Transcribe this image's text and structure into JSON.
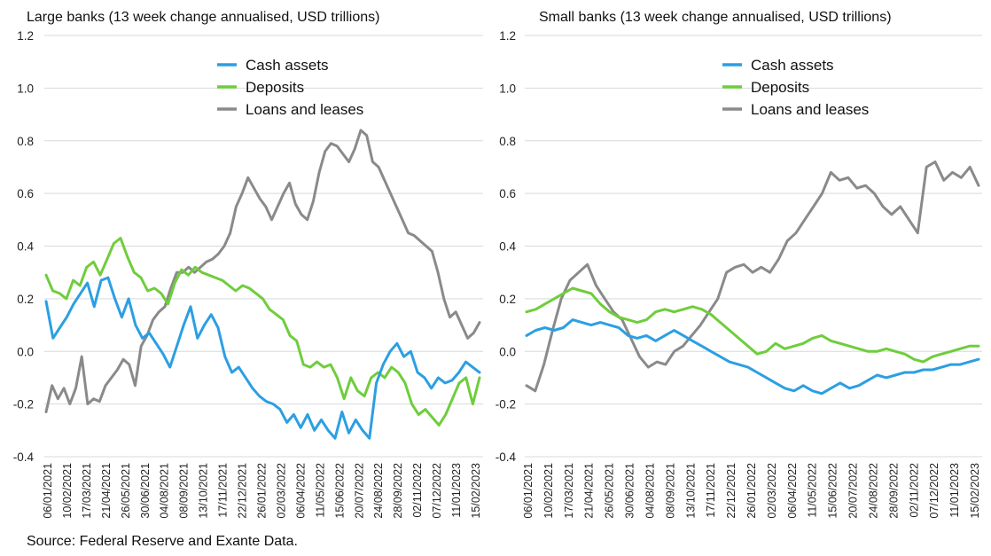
{
  "source": "Source: Federal Reserve and Exante Data.",
  "colors": {
    "cash": "#2b9fe3",
    "deposits": "#6fcd3c",
    "loans": "#8a8a8a",
    "grid": "#d9d9d9"
  },
  "chart_data": [
    {
      "type": "line",
      "title": "Large banks (13 week change annualised, USD trillions)",
      "ylim": [
        -0.4,
        1.2
      ],
      "yticks": [
        "1.2",
        "1.0",
        "0.8",
        "0.6",
        "0.4",
        "0.2",
        "0.0",
        "-0.2",
        "-0.4"
      ],
      "xticks": [
        "06/01/2021",
        "10/02/2021",
        "17/03/2021",
        "21/04/2021",
        "26/05/2021",
        "30/06/2021",
        "04/08/2021",
        "08/09/2021",
        "13/10/2021",
        "17/11/2021",
        "22/12/2021",
        "26/01/2022",
        "02/03/2022",
        "06/04/2022",
        "11/05/2022",
        "15/06/2022",
        "20/07/2022",
        "24/08/2022",
        "28/09/2022",
        "02/11/2022",
        "07/12/2022",
        "11/01/2023",
        "15/02/2023"
      ],
      "legend": "top-center",
      "grid": "horizontal",
      "series": [
        {
          "name": "Cash assets",
          "color_key": "cash",
          "values": [
            0.19,
            0.05,
            0.09,
            0.13,
            0.18,
            0.22,
            0.26,
            0.17,
            0.27,
            0.28,
            0.2,
            0.13,
            0.2,
            0.1,
            0.05,
            0.07,
            0.03,
            -0.01,
            -0.06,
            0.02,
            0.1,
            0.17,
            0.05,
            0.1,
            0.14,
            0.09,
            -0.02,
            -0.08,
            -0.06,
            -0.1,
            -0.14,
            -0.17,
            -0.19,
            -0.2,
            -0.22,
            -0.27,
            -0.24,
            -0.29,
            -0.24,
            -0.3,
            -0.26,
            -0.3,
            -0.33,
            -0.23,
            -0.31,
            -0.26,
            -0.3,
            -0.33,
            -0.12,
            -0.05,
            0.0,
            0.03,
            -0.02,
            0.0,
            -0.08,
            -0.1,
            -0.14,
            -0.1,
            -0.12,
            -0.11,
            -0.08,
            -0.04,
            -0.06,
            -0.08
          ]
        },
        {
          "name": "Deposits",
          "color_key": "deposits",
          "values": [
            0.29,
            0.23,
            0.22,
            0.2,
            0.27,
            0.25,
            0.32,
            0.34,
            0.29,
            0.35,
            0.41,
            0.43,
            0.36,
            0.3,
            0.28,
            0.23,
            0.24,
            0.22,
            0.18,
            0.26,
            0.31,
            0.29,
            0.32,
            0.3,
            0.29,
            0.28,
            0.27,
            0.25,
            0.23,
            0.25,
            0.24,
            0.22,
            0.2,
            0.16,
            0.14,
            0.12,
            0.06,
            0.04,
            -0.05,
            -0.06,
            -0.04,
            -0.06,
            -0.05,
            -0.1,
            -0.18,
            -0.1,
            -0.15,
            -0.17,
            -0.1,
            -0.08,
            -0.1,
            -0.06,
            -0.08,
            -0.12,
            -0.2,
            -0.24,
            -0.22,
            -0.25,
            -0.28,
            -0.24,
            -0.18,
            -0.12,
            -0.1,
            -0.2,
            -0.1
          ]
        },
        {
          "name": "Loans and leases",
          "color_key": "loans",
          "values": [
            -0.23,
            -0.13,
            -0.18,
            -0.14,
            -0.2,
            -0.14,
            -0.02,
            -0.2,
            -0.18,
            -0.19,
            -0.13,
            -0.1,
            -0.07,
            -0.03,
            -0.05,
            -0.13,
            0.02,
            0.06,
            0.12,
            0.15,
            0.17,
            0.24,
            0.3,
            0.3,
            0.32,
            0.3,
            0.32,
            0.34,
            0.35,
            0.37,
            0.4,
            0.45,
            0.55,
            0.6,
            0.66,
            0.62,
            0.58,
            0.55,
            0.5,
            0.55,
            0.6,
            0.64,
            0.56,
            0.52,
            0.5,
            0.57,
            0.68,
            0.76,
            0.79,
            0.78,
            0.75,
            0.72,
            0.77,
            0.84,
            0.82,
            0.72,
            0.7,
            0.65,
            0.6,
            0.55,
            0.5,
            0.45,
            0.44,
            0.42,
            0.4,
            0.38,
            0.3,
            0.2,
            0.13,
            0.15,
            0.1,
            0.05,
            0.07,
            0.11
          ]
        }
      ]
    },
    {
      "type": "line",
      "title": "Small banks (13 week change annualised, USD trillions)",
      "ylim": [
        -0.4,
        1.2
      ],
      "yticks": [
        "1.2",
        "1.0",
        "0.8",
        "0.6",
        "0.4",
        "0.2",
        "0.0",
        "-0.2",
        "-0.4"
      ],
      "xticks": [
        "06/01/2021",
        "10/02/2021",
        "17/03/2021",
        "21/04/2021",
        "26/05/2021",
        "30/06/2021",
        "04/08/2021",
        "08/09/2021",
        "13/10/2021",
        "17/11/2021",
        "22/12/2021",
        "26/01/2022",
        "02/03/2022",
        "06/04/2022",
        "11/05/2022",
        "15/06/2022",
        "20/07/2022",
        "24/08/2022",
        "28/09/2022",
        "02/11/2022",
        "07/12/2022",
        "11/01/2023",
        "15/02/2023"
      ],
      "legend": "top-center",
      "grid": "horizontal",
      "series": [
        {
          "name": "Cash assets",
          "color_key": "cash",
          "values": [
            0.06,
            0.08,
            0.09,
            0.08,
            0.09,
            0.12,
            0.11,
            0.1,
            0.11,
            0.1,
            0.09,
            0.06,
            0.05,
            0.06,
            0.04,
            0.06,
            0.08,
            0.06,
            0.04,
            0.02,
            0.0,
            -0.02,
            -0.04,
            -0.05,
            -0.06,
            -0.08,
            -0.1,
            -0.12,
            -0.14,
            -0.15,
            -0.13,
            -0.15,
            -0.16,
            -0.14,
            -0.12,
            -0.14,
            -0.13,
            -0.11,
            -0.09,
            -0.1,
            -0.09,
            -0.08,
            -0.08,
            -0.07,
            -0.07,
            -0.06,
            -0.05,
            -0.05,
            -0.04,
            -0.03
          ]
        },
        {
          "name": "Deposits",
          "color_key": "deposits",
          "values": [
            0.15,
            0.16,
            0.18,
            0.2,
            0.22,
            0.24,
            0.23,
            0.22,
            0.18,
            0.15,
            0.13,
            0.12,
            0.11,
            0.12,
            0.15,
            0.16,
            0.15,
            0.16,
            0.17,
            0.16,
            0.14,
            0.11,
            0.08,
            0.05,
            0.02,
            -0.01,
            0.0,
            0.03,
            0.01,
            0.02,
            0.03,
            0.05,
            0.06,
            0.04,
            0.03,
            0.02,
            0.01,
            0.0,
            0.0,
            0.01,
            0.0,
            -0.01,
            -0.03,
            -0.04,
            -0.02,
            -0.01,
            0.0,
            0.01,
            0.02,
            0.02
          ]
        },
        {
          "name": "Loans and leases",
          "color_key": "loans",
          "values": [
            -0.13,
            -0.15,
            -0.05,
            0.08,
            0.2,
            0.27,
            0.3,
            0.33,
            0.25,
            0.2,
            0.15,
            0.12,
            0.05,
            -0.02,
            -0.06,
            -0.04,
            -0.05,
            0.0,
            0.02,
            0.06,
            0.1,
            0.15,
            0.2,
            0.3,
            0.32,
            0.33,
            0.3,
            0.32,
            0.3,
            0.35,
            0.42,
            0.45,
            0.5,
            0.55,
            0.6,
            0.68,
            0.65,
            0.66,
            0.62,
            0.63,
            0.6,
            0.55,
            0.52,
            0.55,
            0.5,
            0.45,
            0.7,
            0.72,
            0.65,
            0.68,
            0.66,
            0.7,
            0.63
          ]
        }
      ]
    }
  ]
}
